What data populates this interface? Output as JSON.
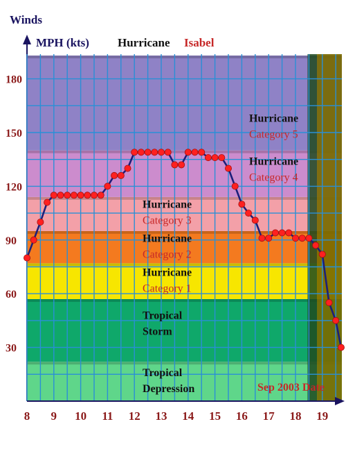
{
  "header": {
    "winds_label": "Winds",
    "units_label": "MPH (kts)",
    "title_word": "Hurricane",
    "storm_name": "Isabel"
  },
  "colors": {
    "title_dark": "#1a1460",
    "accent_red": "#c62828",
    "tick_label": "#8b1a1a",
    "grid": "#2a8fd6",
    "line": "#1c1f7a",
    "marker": "#ff2020"
  },
  "chart_data": {
    "type": "line",
    "title": "Hurricane Isabel",
    "ylabel": "MPH (kts)",
    "xlabel": "Sep 2003 Date",
    "xlim": [
      8,
      19.7
    ],
    "ylim": [
      0,
      193
    ],
    "x_ticks": [
      "8",
      "9",
      "10",
      "11",
      "12",
      "13",
      "14",
      "15",
      "16",
      "17",
      "18",
      "19"
    ],
    "y_ticks": [
      "30",
      "60",
      "90",
      "120",
      "150",
      "180"
    ],
    "grid": true,
    "categories": [
      {
        "name": "Tropical Depression",
        "line1": "Tropical",
        "line2": "Depression",
        "from": 0,
        "to": 22,
        "color": "#5fd68a"
      },
      {
        "name": "Tropical Storm",
        "line1": "Tropical",
        "line2": "Storm",
        "from": 22,
        "to": 57,
        "color": "#0fa86a"
      },
      {
        "name": "Hurricane Category 1",
        "line1": "Hurricane",
        "line2": "Category 1",
        "from": 57,
        "to": 77,
        "color": "#f7e600"
      },
      {
        "name": "Hurricane Category 2",
        "line1": "Hurricane",
        "line2": "Category 2",
        "from": 77,
        "to": 95,
        "color": "#f47a1f"
      },
      {
        "name": "Hurricane Category 3",
        "line1": "Hurricane",
        "line2": "Category 3",
        "from": 95,
        "to": 114,
        "color": "#f3a0a8"
      },
      {
        "name": "Hurricane Category 4",
        "line1": "Hurricane",
        "line2": "Category 4",
        "from": 114,
        "to": 140,
        "color": "#cc8ccd"
      },
      {
        "name": "Hurricane Category 5",
        "line1": "Hurricane",
        "line2": "Category 5",
        "from": 140,
        "to": 193,
        "color": "#8f82c6"
      }
    ],
    "series": [
      {
        "x": [
          8.0,
          8.25,
          8.5,
          8.75,
          9.0,
          9.25,
          9.5,
          9.75,
          10.0,
          10.25,
          10.5,
          10.75,
          11.0,
          11.25,
          11.5,
          11.75,
          12.0,
          12.25,
          12.5,
          12.75,
          13.0,
          13.25,
          13.5,
          13.75,
          14.0,
          14.25,
          14.5,
          14.75,
          15.0,
          15.25,
          15.5,
          15.75,
          16.0,
          16.25,
          16.5,
          16.75,
          17.0,
          17.25,
          17.5,
          17.75,
          18.0,
          18.25,
          18.5,
          18.75,
          19.0,
          19.25,
          19.5,
          19.7
        ],
        "values": [
          80,
          90,
          100,
          111,
          115,
          115,
          115,
          115,
          115,
          115,
          115,
          115,
          120,
          126,
          126,
          130,
          139,
          139,
          139,
          139,
          139,
          139,
          132,
          132,
          139,
          139,
          139,
          136,
          136,
          136,
          130,
          120,
          110,
          105,
          101,
          91,
          91,
          94,
          94,
          94,
          91,
          91,
          91,
          87,
          82,
          55,
          45,
          30
        ]
      }
    ],
    "legend_shade": "Post-landfall period shaded after Sep 18"
  }
}
